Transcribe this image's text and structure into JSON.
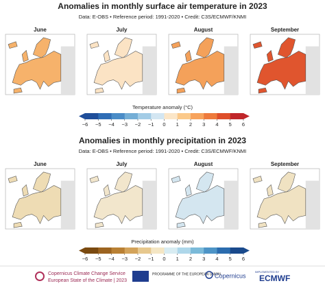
{
  "panels": [
    {
      "title": "Anomalies in monthly surface air temperature in 2023",
      "subtitle": "Data: E-OBS • Reference period: 1991-2020 • Credit: C3S/ECMWF/KNMI",
      "maps": [
        {
          "month": "June",
          "color": "#f6b26b"
        },
        {
          "month": "July",
          "color": "#fbe3c4"
        },
        {
          "month": "August",
          "color": "#f4a15a"
        },
        {
          "month": "September",
          "color": "#e0552e"
        }
      ],
      "colorbar": {
        "label": "Temperature anomaly (°C)",
        "colors": [
          "#1f4e9a",
          "#2f6db5",
          "#4a8cc7",
          "#74aed6",
          "#a3cce6",
          "#d3e6f2",
          "#fbe6c8",
          "#fbc98a",
          "#f7a35c",
          "#ee7a3c",
          "#de4e2a",
          "#c0262a"
        ],
        "lim": [
          -6,
          6
        ],
        "ticks": [
          {
            "value": -6,
            "label": "−6"
          },
          {
            "value": -5,
            "label": "−5"
          },
          {
            "value": -4,
            "label": "−4"
          },
          {
            "value": -3,
            "label": "−3"
          },
          {
            "value": -2,
            "label": "−2"
          },
          {
            "value": -1,
            "label": "−1"
          },
          0,
          1,
          2,
          3,
          4,
          5,
          6
        ]
      }
    },
    {
      "title": "Anomalies in monthly precipitation in 2023",
      "subtitle": "Data: E-OBS • Reference period: 1991-2020 • Credit: C3S/ECMWF/KNMI",
      "maps": [
        {
          "month": "June",
          "color": "#eedcb4"
        },
        {
          "month": "July",
          "color": "#f2e6cc"
        },
        {
          "month": "August",
          "color": "#d4e6f0"
        },
        {
          "month": "September",
          "color": "#f0e2c2"
        }
      ],
      "colorbar": {
        "label": "Precipitation anomaly (mm)",
        "colors": [
          "#7a4a10",
          "#9c6420",
          "#b98034",
          "#d3a35a",
          "#e7c88e",
          "#f4e6c4",
          "#d8ecf2",
          "#aed7ea",
          "#7bbad9",
          "#4d94c6",
          "#2b6cae",
          "#1a4a8c"
        ],
        "lim": [
          -6,
          6
        ],
        "ticks": [
          {
            "value": -6,
            "label": "−6"
          },
          {
            "value": -5,
            "label": "−5"
          },
          {
            "value": -4,
            "label": "−4"
          },
          {
            "value": -3,
            "label": "−3"
          },
          {
            "value": -2,
            "label": "−2"
          },
          {
            "value": -1,
            "label": "−1"
          },
          0,
          1,
          2,
          3,
          4,
          5,
          6
        ]
      }
    }
  ],
  "footer": {
    "c3s_name": "Copernicus Climate Change Service",
    "c3s_report": "European State of the Climate | 2023",
    "eu": "PROGRAMME OF THE EUROPEAN UNION",
    "copernicus": "Copernicus",
    "implemented": "IMPLEMENTED BY",
    "ecmwf": "ECMWF"
  }
}
